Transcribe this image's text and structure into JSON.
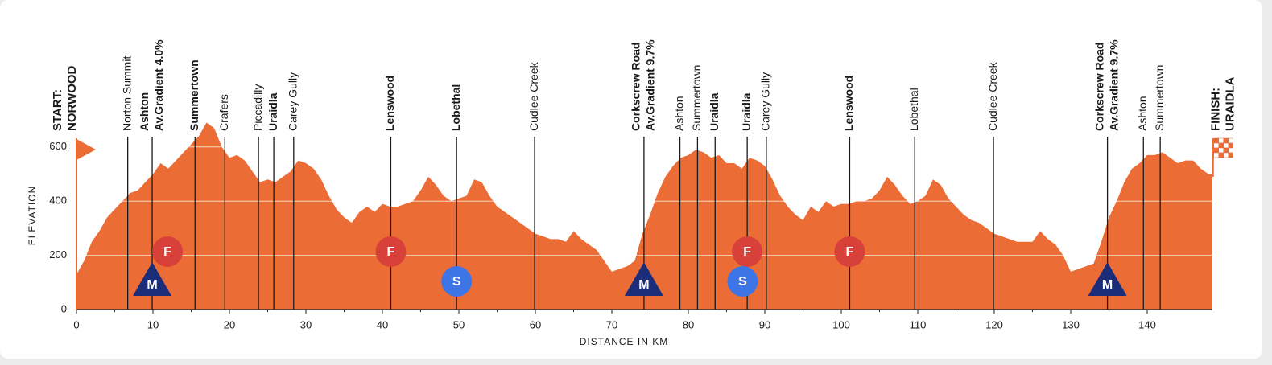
{
  "chart_data": {
    "type": "area",
    "xlabel": "DISTANCE IN KM",
    "ylabel": "ELEVATION",
    "color": "#ec6c36",
    "grid": true,
    "xlim": [
      0,
      148.5
    ],
    "ylim": [
      0,
      700
    ],
    "xticks": [
      0,
      10,
      20,
      30,
      40,
      50,
      60,
      70,
      80,
      90,
      100,
      110,
      120,
      130,
      140
    ],
    "yticks": [
      0,
      200,
      400,
      600
    ],
    "x": [
      0,
      1,
      2,
      3,
      4,
      5,
      6,
      7,
      8,
      9,
      10,
      11,
      12,
      13,
      14,
      15,
      16,
      17,
      18,
      19,
      20,
      21,
      22,
      23,
      24,
      25,
      26,
      27,
      28,
      29,
      30,
      31,
      32,
      33,
      34,
      35,
      36,
      37,
      38,
      39,
      40,
      41,
      42,
      43,
      44,
      45,
      46,
      47,
      48,
      49,
      50,
      51,
      52,
      53,
      54,
      55,
      56,
      57,
      58,
      59,
      60,
      61,
      62,
      63,
      64,
      65,
      66,
      67,
      68,
      69,
      70,
      71,
      72,
      73,
      74,
      75,
      76,
      77,
      78,
      79,
      80,
      81,
      82,
      83,
      84,
      85,
      86,
      87,
      88,
      89,
      90,
      91,
      92,
      93,
      94,
      95,
      96,
      97,
      98,
      99,
      100,
      101,
      102,
      103,
      104,
      105,
      106,
      107,
      108,
      109,
      110,
      111,
      112,
      113,
      114,
      115,
      116,
      117,
      118,
      119,
      120,
      121,
      122,
      123,
      124,
      125,
      126,
      127,
      128,
      129,
      130,
      131,
      132,
      133,
      134,
      135,
      136,
      137,
      138,
      139,
      140,
      141,
      142,
      143,
      144,
      145,
      146,
      147,
      148,
      148.5
    ],
    "values": [
      130,
      180,
      250,
      290,
      340,
      370,
      400,
      430,
      440,
      470,
      500,
      540,
      520,
      550,
      580,
      610,
      640,
      690,
      670,
      600,
      560,
      570,
      550,
      510,
      470,
      480,
      470,
      490,
      510,
      550,
      540,
      520,
      480,
      420,
      370,
      340,
      320,
      360,
      380,
      360,
      390,
      380,
      380,
      390,
      400,
      440,
      490,
      460,
      420,
      400,
      410,
      420,
      480,
      470,
      420,
      380,
      360,
      340,
      320,
      300,
      280,
      270,
      260,
      260,
      250,
      290,
      260,
      240,
      220,
      180,
      140,
      150,
      160,
      180,
      280,
      350,
      430,
      490,
      530,
      560,
      570,
      590,
      580,
      560,
      570,
      540,
      540,
      520,
      560,
      550,
      530,
      480,
      420,
      380,
      350,
      330,
      380,
      360,
      400,
      380,
      390,
      390,
      400,
      400,
      410,
      440,
      490,
      460,
      420,
      390,
      400,
      420,
      480,
      460,
      410,
      380,
      350,
      330,
      320,
      300,
      280,
      270,
      260,
      250,
      250,
      250,
      290,
      260,
      240,
      200,
      140,
      150,
      160,
      170,
      250,
      340,
      400,
      470,
      520,
      540,
      570,
      570,
      580,
      560,
      540,
      550,
      550,
      520,
      500,
      500
    ],
    "start": {
      "lines": [
        "START:",
        "NORWOOD"
      ]
    },
    "finish": {
      "lines": [
        "FINISH:",
        "URAIDLA"
      ]
    },
    "waypoints": [
      {
        "km": 6.7,
        "lines": [
          "Norton Summit"
        ],
        "bold": false
      },
      {
        "km": 9.9,
        "lines": [
          "Ashton",
          "Av.Gradient 4.0%"
        ],
        "bold": true
      },
      {
        "km": 15.5,
        "lines": [
          "Summertown"
        ],
        "bold": true
      },
      {
        "km": 19.4,
        "lines": [
          "Crafers"
        ],
        "bold": false
      },
      {
        "km": 23.8,
        "lines": [
          "Piccadilly"
        ],
        "bold": false
      },
      {
        "km": 25.8,
        "lines": [
          "Uraidla"
        ],
        "bold": true
      },
      {
        "km": 28.4,
        "lines": [
          "Carey Gully"
        ],
        "bold": false
      },
      {
        "km": 41.1,
        "lines": [
          "Lenswood"
        ],
        "bold": true
      },
      {
        "km": 49.7,
        "lines": [
          "Lobethal"
        ],
        "bold": true
      },
      {
        "km": 59.9,
        "lines": [
          "Cudlee Creek"
        ],
        "bold": false
      },
      {
        "km": 74.2,
        "lines": [
          "Corkscrew Road",
          "Av.Gradient 9.7%"
        ],
        "bold": true
      },
      {
        "km": 78.9,
        "lines": [
          "Ashton"
        ],
        "bold": false
      },
      {
        "km": 81.2,
        "lines": [
          "Summertown"
        ],
        "bold": false
      },
      {
        "km": 83.5,
        "lines": [
          "Uraidla"
        ],
        "bold": true
      },
      {
        "km": 87.7,
        "lines": [
          "Uraidla"
        ],
        "bold": true
      },
      {
        "km": 90.2,
        "lines": [
          "Carey Gully"
        ],
        "bold": false
      },
      {
        "km": 101.1,
        "lines": [
          "Lenswood"
        ],
        "bold": true
      },
      {
        "km": 109.6,
        "lines": [
          "Lobethal"
        ],
        "bold": false
      },
      {
        "km": 119.9,
        "lines": [
          "Cudlee Creek"
        ],
        "bold": false
      },
      {
        "km": 134.8,
        "lines": [
          "Corkscrew Road",
          "Av.Gradient 9.7%"
        ],
        "bold": true
      },
      {
        "km": 139.5,
        "lines": [
          "Ashton"
        ],
        "bold": false
      },
      {
        "km": 141.7,
        "lines": [
          "Summertown"
        ],
        "bold": false
      }
    ],
    "markers": [
      {
        "km": 11.9,
        "symbol": "F",
        "color": "#d8403a"
      },
      {
        "km": 41.1,
        "symbol": "F",
        "color": "#d8403a"
      },
      {
        "km": 87.7,
        "symbol": "F",
        "color": "#d8403a"
      },
      {
        "km": 101.1,
        "symbol": "F",
        "color": "#d8403a"
      },
      {
        "km": 49.7,
        "symbol": "S",
        "color": "#3d74e6"
      },
      {
        "km": 87.1,
        "symbol": "S",
        "color": "#3d74e6"
      },
      {
        "km": 9.9,
        "symbol": "M",
        "color": "#1b2d78"
      },
      {
        "km": 74.2,
        "symbol": "M",
        "color": "#1b2d78"
      },
      {
        "km": 134.8,
        "symbol": "M",
        "color": "#1b2d78"
      }
    ]
  }
}
